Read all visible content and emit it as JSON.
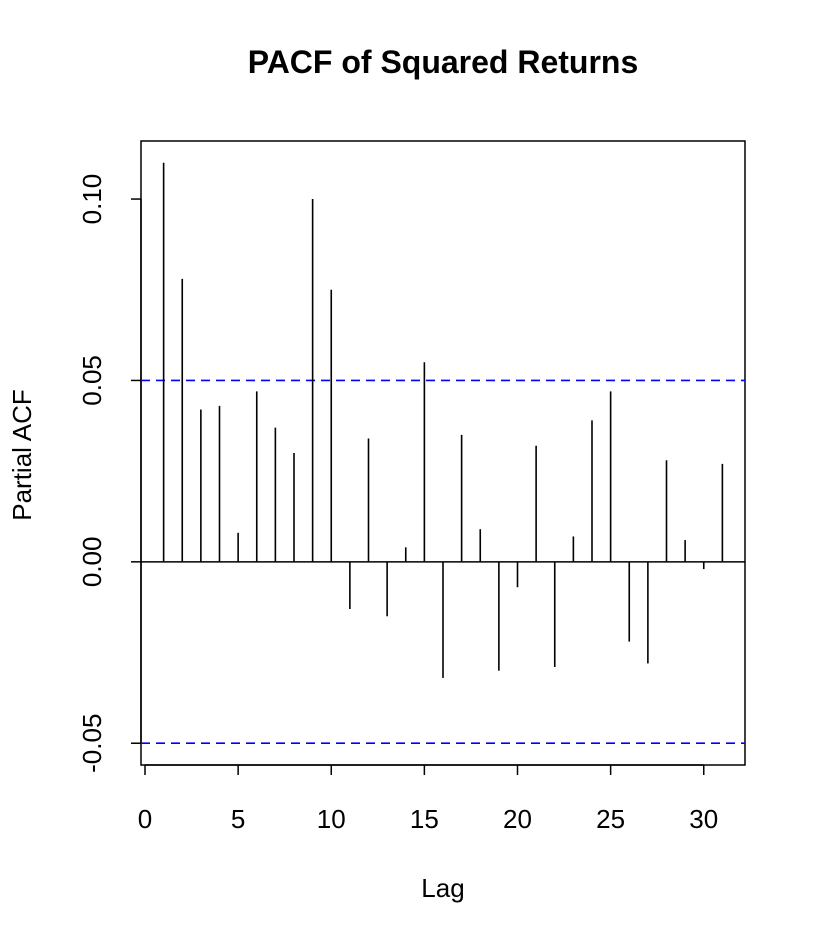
{
  "chart_data": {
    "type": "bar",
    "title": "PACF of Squared Returns",
    "xlabel": "Lag",
    "ylabel": "Partial ACF",
    "xlim": [
      0,
      32
    ],
    "ylim": [
      -0.056,
      0.116
    ],
    "x_ticks": [
      0,
      5,
      10,
      15,
      20,
      25,
      30
    ],
    "y_ticks": [
      -0.05,
      0.0,
      0.05,
      0.1
    ],
    "y_tick_labels": [
      "-0.05",
      "0.00",
      "0.05",
      "0.10"
    ],
    "confidence_bounds": [
      0.05,
      -0.05
    ],
    "zero_line": 0.0,
    "grid": false,
    "colors": {
      "bars": "#000000",
      "confidence": "#0000ff"
    },
    "x": [
      1,
      2,
      3,
      4,
      5,
      6,
      7,
      8,
      9,
      10,
      11,
      12,
      13,
      14,
      15,
      16,
      17,
      18,
      19,
      20,
      21,
      22,
      23,
      24,
      25,
      26,
      27,
      28,
      29,
      30,
      31
    ],
    "values": [
      0.11,
      0.078,
      0.042,
      0.043,
      0.008,
      0.047,
      0.037,
      0.03,
      0.1,
      0.075,
      -0.013,
      0.034,
      -0.015,
      0.004,
      0.055,
      -0.032,
      0.035,
      0.009,
      -0.03,
      -0.007,
      0.032,
      -0.029,
      0.007,
      0.039,
      0.047,
      -0.022,
      -0.028,
      0.028,
      0.006,
      -0.002,
      0.027
    ]
  }
}
